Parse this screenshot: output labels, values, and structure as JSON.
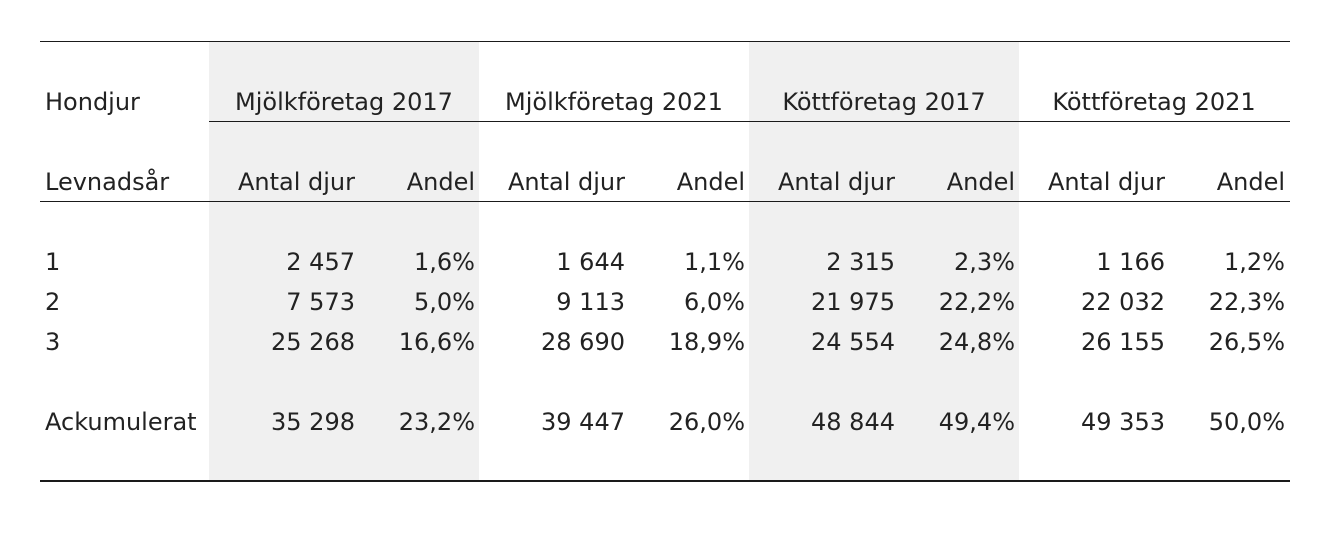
{
  "table": {
    "group_header": "Hondjur",
    "row_header": "Levnadsår",
    "groups": [
      {
        "label": "Mjölkföretag 2017",
        "col1": "Antal djur",
        "col2": "Andel"
      },
      {
        "label": "Mjölkföretag 2021",
        "col1": "Antal djur",
        "col2": "Andel"
      },
      {
        "label": "Köttföretag 2017",
        "col1": "Antal djur",
        "col2": "Andel"
      },
      {
        "label": "Köttföretag 2021",
        "col1": "Antal djur",
        "col2": "Andel"
      }
    ],
    "rows": [
      {
        "label": "1",
        "cells": [
          "2 457",
          "1,6%",
          "1 644",
          "1,1%",
          "2 315",
          "2,3%",
          "1 166",
          "1,2%"
        ]
      },
      {
        "label": "2",
        "cells": [
          "7 573",
          "5,0%",
          "9 113",
          "6,0%",
          "21 975",
          "22,2%",
          "22 032",
          "22,3%"
        ]
      },
      {
        "label": "3",
        "cells": [
          "25 268",
          "16,6%",
          "28 690",
          "18,9%",
          "24 554",
          "24,8%",
          "26 155",
          "26,5%"
        ]
      },
      {
        "label": "Ackumulerat",
        "cells": [
          "35 298",
          "23,2%",
          "39 447",
          "26,0%",
          "48 844",
          "49,4%",
          "49 353",
          "50,0%"
        ]
      }
    ],
    "shaded_fill": "#f0f0f0",
    "rule_color": "#1a1a1a"
  }
}
